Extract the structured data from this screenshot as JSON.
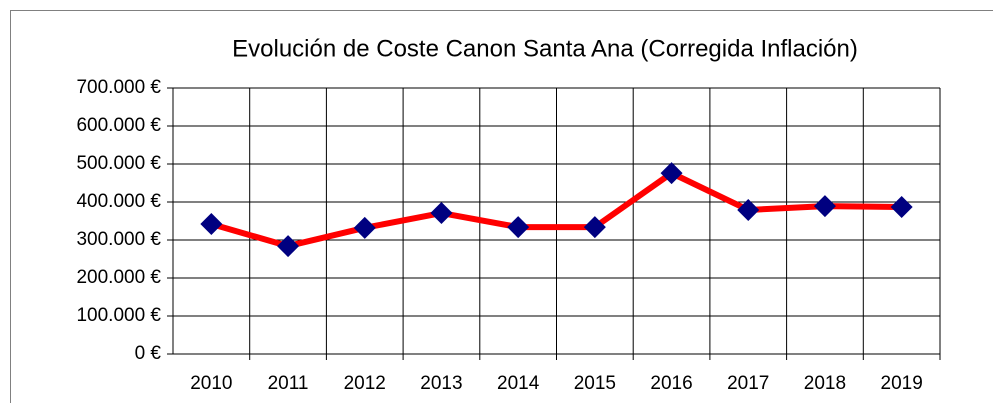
{
  "chart_data": {
    "type": "line",
    "title": "Evolución de Coste Canon Santa Ana (Corregida Inflación)",
    "categories": [
      "2010",
      "2011",
      "2012",
      "2013",
      "2014",
      "2015",
      "2016",
      "2017",
      "2018",
      "2019"
    ],
    "values": [
      342000,
      284000,
      332000,
      371000,
      334000,
      334000,
      476000,
      379000,
      389000,
      387000
    ],
    "color": "#ff0000",
    "marker_color": "#000080",
    "ylim": [
      0,
      700000
    ],
    "yticks": [
      {
        "value": 0,
        "label": "0 €"
      },
      {
        "value": 100000,
        "label": "100.000 €"
      },
      {
        "value": 200000,
        "label": "200.000 €"
      },
      {
        "value": 300000,
        "label": "300.000 €"
      },
      {
        "value": 400000,
        "label": "400.000 €"
      },
      {
        "value": 500000,
        "label": "500.000 €"
      },
      {
        "value": 600000,
        "label": "600.000 €"
      },
      {
        "value": 700000,
        "label": "700.000 €"
      }
    ],
    "grid": true
  }
}
